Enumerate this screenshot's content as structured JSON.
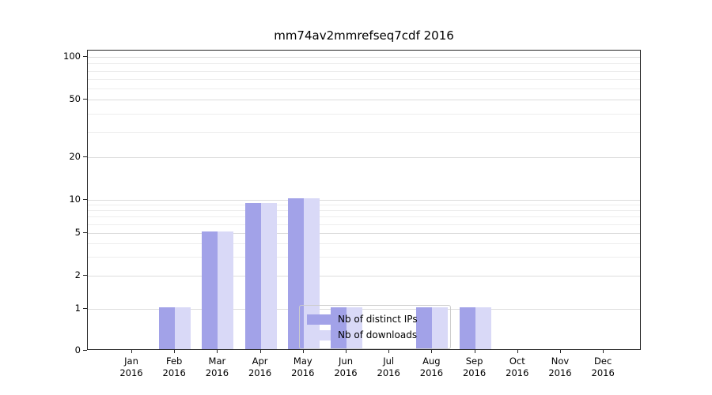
{
  "title": "mm74av2mmrefseq7cdf 2016",
  "chart_data": {
    "type": "bar",
    "title": "mm74av2mmrefseq7cdf 2016",
    "categories": [
      "Jan",
      "Feb",
      "Mar",
      "Apr",
      "May",
      "Jun",
      "Jul",
      "Aug",
      "Sep",
      "Oct",
      "Nov",
      "Dec"
    ],
    "year": "2016",
    "series": [
      {
        "name": "Nb of distinct IPs",
        "color": "#a2a2e8",
        "values": [
          0,
          1,
          5,
          9,
          10,
          1,
          0,
          1,
          1,
          0,
          0,
          0
        ]
      },
      {
        "name": "Nb of downloads",
        "color": "#d9d9f7",
        "values": [
          0,
          1,
          5,
          9,
          10,
          1,
          0,
          1,
          1,
          0,
          0,
          0
        ]
      }
    ],
    "yscale": "symlog",
    "ylim": [
      0,
      100
    ],
    "y_major_ticks": [
      0,
      1,
      2,
      5,
      10,
      20,
      50,
      100
    ],
    "y_minor_ticks": [
      3,
      4,
      6,
      7,
      8,
      9,
      30,
      40,
      60,
      70,
      80,
      90
    ],
    "grid": true,
    "legend_position": "lower center"
  },
  "legend": {
    "items": [
      {
        "label": "Nb of distinct IPs",
        "color": "#a2a2e8"
      },
      {
        "label": "Nb of downloads",
        "color": "#d9d9f7"
      }
    ]
  },
  "colors": {
    "distinct_ips": "#a2a2e8",
    "downloads": "#d9d9f7",
    "grid_major": "#dcdcdc",
    "grid_minor": "#ededed",
    "spine": "#262626"
  }
}
